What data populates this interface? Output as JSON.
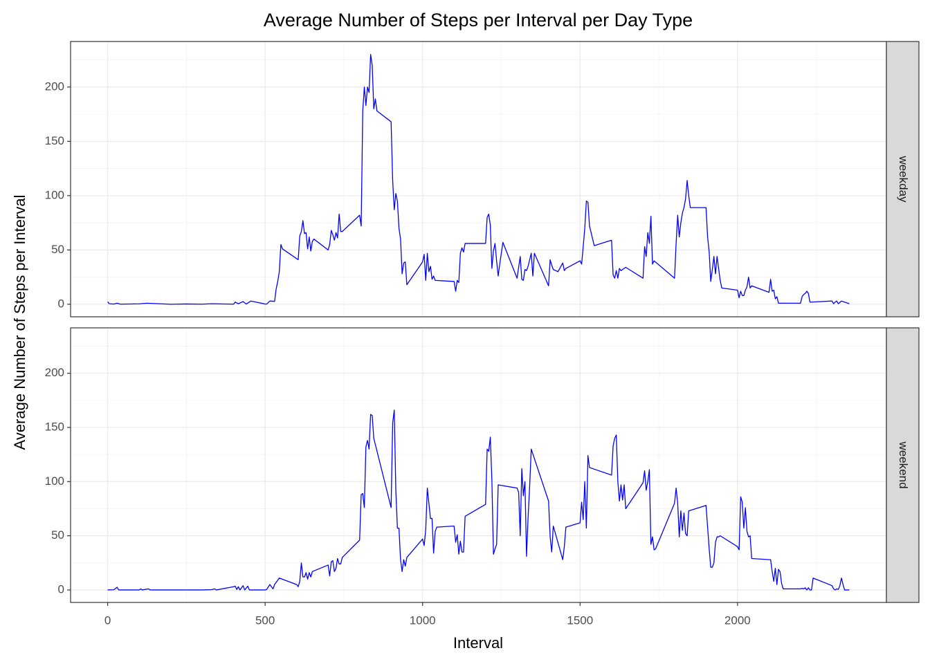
{
  "chart_data": {
    "type": "line",
    "facet": true,
    "title": "Average Number of Steps per Interval per Day Type",
    "x_label": "Interval",
    "y_label": "Average Number of Steps per Interval",
    "xlim": [
      -117.75,
      2472.75
    ],
    "xticks": [
      0,
      500,
      1000,
      1500,
      2000
    ],
    "minor_xticks": [
      250,
      750,
      1250,
      1750,
      2250
    ],
    "ylim": [
      -11.52,
      241.9
    ],
    "yticks": [
      0,
      50,
      100,
      150,
      200
    ],
    "minor_yticks": [
      25,
      75,
      125,
      175,
      225
    ],
    "grid": true,
    "series": [
      {
        "name": "weekday",
        "color": "#0000ff",
        "x": [
          0,
          5,
          20,
          30,
          40,
          100,
          125,
          200,
          250,
          300,
          330,
          400,
          405,
          415,
          430,
          440,
          455,
          500,
          505,
          515,
          530,
          535,
          540,
          545,
          550,
          555,
          600,
          605,
          610,
          615,
          620,
          625,
          630,
          635,
          640,
          645,
          650,
          655,
          700,
          705,
          710,
          715,
          720,
          725,
          730,
          735,
          740,
          745,
          800,
          805,
          810,
          815,
          820,
          825,
          830,
          835,
          840,
          845,
          850,
          855,
          900,
          905,
          910,
          915,
          920,
          925,
          930,
          935,
          940,
          945,
          950,
          1000,
          1005,
          1010,
          1015,
          1020,
          1025,
          1030,
          1035,
          1040,
          1100,
          1105,
          1110,
          1115,
          1120,
          1125,
          1130,
          1135,
          1200,
          1205,
          1210,
          1215,
          1220,
          1225,
          1230,
          1235,
          1240,
          1245,
          1255,
          1300,
          1305,
          1310,
          1315,
          1320,
          1325,
          1330,
          1335,
          1340,
          1345,
          1350,
          1355,
          1400,
          1405,
          1410,
          1415,
          1430,
          1445,
          1450,
          1455,
          1500,
          1505,
          1510,
          1515,
          1520,
          1525,
          1530,
          1545,
          1600,
          1605,
          1610,
          1615,
          1620,
          1625,
          1630,
          1645,
          1700,
          1705,
          1710,
          1715,
          1720,
          1725,
          1730,
          1735,
          1800,
          1805,
          1810,
          1815,
          1820,
          1825,
          1830,
          1835,
          1840,
          1845,
          1850,
          1900,
          1905,
          1910,
          1915,
          1920,
          1925,
          1930,
          1935,
          1940,
          1945,
          1950,
          2000,
          2005,
          2010,
          2015,
          2020,
          2025,
          2030,
          2035,
          2040,
          2045,
          2100,
          2105,
          2110,
          2115,
          2120,
          2125,
          2130,
          2200,
          2205,
          2210,
          2215,
          2220,
          2225,
          2230,
          2235,
          2300,
          2305,
          2310,
          2315,
          2320,
          2330,
          2355
        ],
        "values": [
          2.3,
          0.5,
          0.2,
          1,
          0.1,
          0.4,
          1,
          0,
          0.3,
          0.1,
          0.5,
          0.1,
          2,
          0.5,
          2.5,
          0.2,
          3,
          0.2,
          0.2,
          3,
          2.7,
          14,
          21,
          30,
          55,
          51,
          42,
          41,
          63,
          67,
          77,
          65,
          66,
          51,
          62,
          49,
          58,
          60,
          50,
          55,
          68,
          64,
          59,
          66,
          61,
          83,
          67,
          67,
          82,
          72,
          178,
          200,
          183,
          200,
          195,
          230,
          220,
          180,
          189,
          178,
          168,
          114,
          87,
          102,
          95,
          70,
          60,
          28,
          38,
          39,
          18,
          39,
          46,
          22,
          47,
          30,
          35,
          23,
          26,
          22,
          21,
          12,
          22,
          20,
          47,
          52,
          48,
          56,
          56,
          80,
          83,
          73,
          33,
          49,
          56,
          40,
          26,
          37,
          57,
          24,
          34,
          44,
          23,
          22,
          32,
          31,
          35,
          41,
          47,
          26,
          47,
          17,
          41,
          36,
          32,
          30,
          38,
          31,
          33,
          40,
          37,
          53,
          70,
          95,
          94,
          72,
          54,
          59,
          27,
          24,
          31,
          24,
          33,
          31,
          34,
          24,
          53,
          44,
          66,
          56,
          81,
          37,
          40,
          24,
          56,
          82,
          62,
          75,
          84,
          89,
          97,
          114,
          100,
          89,
          89,
          62,
          48,
          21,
          32,
          44,
          28,
          44,
          33,
          22,
          15,
          13,
          6,
          12,
          8,
          8,
          13,
          16,
          25,
          15,
          17,
          11,
          23,
          12,
          13,
          5,
          7,
          1,
          1,
          7,
          9,
          10,
          12,
          10,
          2,
          2,
          3,
          0.5,
          2,
          3,
          0.5,
          3,
          0.5
        ]
      },
      {
        "name": "weekend",
        "color": "#0000ff",
        "x": [
          0,
          20,
          30,
          35,
          100,
          105,
          110,
          130,
          135,
          200,
          300,
          330,
          340,
          345,
          400,
          405,
          410,
          415,
          420,
          430,
          435,
          445,
          450,
          500,
          505,
          515,
          525,
          530,
          540,
          545,
          600,
          605,
          610,
          615,
          620,
          625,
          630,
          635,
          640,
          645,
          650,
          700,
          705,
          710,
          715,
          720,
          725,
          730,
          735,
          740,
          745,
          800,
          805,
          810,
          815,
          820,
          825,
          830,
          835,
          840,
          845,
          900,
          905,
          910,
          915,
          920,
          925,
          930,
          935,
          940,
          945,
          950,
          1000,
          1005,
          1010,
          1015,
          1020,
          1025,
          1030,
          1035,
          1040,
          1045,
          1100,
          1105,
          1110,
          1115,
          1120,
          1125,
          1130,
          1135,
          1200,
          1205,
          1210,
          1215,
          1220,
          1225,
          1230,
          1235,
          1240,
          1300,
          1305,
          1310,
          1315,
          1320,
          1325,
          1330,
          1335,
          1340,
          1345,
          1400,
          1405,
          1410,
          1415,
          1445,
          1450,
          1455,
          1500,
          1505,
          1510,
          1515,
          1520,
          1525,
          1530,
          1600,
          1605,
          1610,
          1615,
          1620,
          1625,
          1630,
          1635,
          1640,
          1645,
          1700,
          1705,
          1710,
          1715,
          1720,
          1725,
          1730,
          1735,
          1740,
          1800,
          1805,
          1810,
          1815,
          1820,
          1825,
          1830,
          1835,
          1840,
          1845,
          1900,
          1905,
          1910,
          1915,
          1920,
          1925,
          1930,
          1935,
          1940,
          1945,
          2000,
          2005,
          2010,
          2015,
          2020,
          2025,
          2030,
          2035,
          2040,
          2045,
          2100,
          2105,
          2110,
          2115,
          2120,
          2125,
          2130,
          2135,
          2140,
          2145,
          2200,
          2205,
          2210,
          2215,
          2220,
          2225,
          2230,
          2235,
          2240,
          2300,
          2305,
          2310,
          2315,
          2320,
          2325,
          2330,
          2335,
          2340,
          2355
        ],
        "values": [
          0,
          0.2,
          2.5,
          0,
          0,
          1,
          0,
          1,
          0,
          0,
          0,
          0.3,
          1,
          0,
          3,
          3.5,
          0.5,
          3,
          0,
          4,
          0,
          3.5,
          0,
          0,
          0.5,
          5,
          1,
          5,
          9,
          11,
          5,
          3,
          8,
          25,
          12,
          12,
          16,
          10,
          16,
          12,
          17,
          23,
          13,
          26,
          27,
          17,
          20,
          29,
          24,
          24,
          30,
          46,
          88,
          89,
          76,
          132,
          138,
          130,
          162,
          161,
          140,
          76,
          154,
          166,
          92,
          57,
          57,
          28,
          17,
          28,
          22,
          30,
          47,
          41,
          56,
          94,
          80,
          66,
          66,
          34,
          54,
          58,
          59,
          44,
          51,
          33,
          45,
          35,
          35,
          68,
          79,
          130,
          128,
          141,
          102,
          33,
          38,
          42,
          97,
          94,
          90,
          50,
          112,
          87,
          100,
          31,
          67,
          96,
          130,
          82,
          49,
          35,
          59,
          28,
          40,
          58,
          62,
          81,
          65,
          100,
          57,
          124,
          113,
          106,
          133,
          140,
          143,
          100,
          82,
          97,
          83,
          97,
          75,
          99,
          110,
          92,
          100,
          111,
          42,
          49,
          37,
          38,
          80,
          94,
          80,
          49,
          73,
          55,
          71,
          52,
          50,
          73,
          78,
          58,
          38,
          21,
          21,
          25,
          44,
          49,
          49,
          50,
          40,
          37,
          86,
          81,
          57,
          76,
          54,
          49,
          50,
          29,
          28,
          28,
          17,
          8,
          20,
          5,
          19,
          17,
          6,
          1,
          1,
          1.5,
          1,
          2,
          0,
          2,
          0,
          0,
          11,
          4,
          1,
          0,
          1,
          0.5,
          4,
          11,
          5,
          0,
          0
        ]
      }
    ]
  }
}
